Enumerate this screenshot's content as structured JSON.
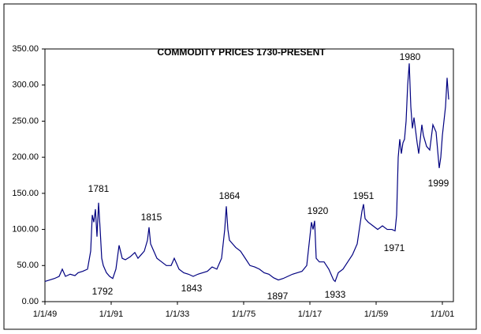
{
  "chart_data": {
    "type": "line",
    "title": "COMMODITY PRICES 1730-PRESENT",
    "x": [
      1749,
      1752,
      1755,
      1758,
      1760,
      1762,
      1765,
      1768,
      1770,
      1773,
      1776,
      1778,
      1779,
      1780,
      1781,
      1782,
      1783,
      1784,
      1785,
      1786,
      1788,
      1790,
      1792,
      1794,
      1796,
      1798,
      1800,
      1803,
      1806,
      1808,
      1810,
      1812,
      1814,
      1815,
      1816,
      1818,
      1820,
      1823,
      1826,
      1829,
      1831,
      1834,
      1837,
      1840,
      1843,
      1846,
      1849,
      1852,
      1855,
      1858,
      1861,
      1863,
      1864,
      1865,
      1866,
      1868,
      1870,
      1873,
      1876,
      1879,
      1882,
      1885,
      1888,
      1891,
      1894,
      1897,
      1900,
      1903,
      1906,
      1909,
      1912,
      1915,
      1917,
      1918,
      1919,
      1920,
      1921,
      1923,
      1926,
      1929,
      1932,
      1933,
      1935,
      1938,
      1941,
      1944,
      1947,
      1950,
      1951,
      1952,
      1954,
      1957,
      1960,
      1963,
      1966,
      1969,
      1971,
      1972,
      1973,
      1974,
      1975,
      1976,
      1977,
      1978,
      1979,
      1980,
      1981,
      1982,
      1983,
      1985,
      1986,
      1988,
      1989,
      1991,
      1993,
      1995,
      1997,
      1999,
      2000,
      2001,
      2003,
      2004,
      2005
    ],
    "series": [
      {
        "color": "#000080",
        "values": [
          28,
          30,
          32,
          35,
          45,
          35,
          38,
          36,
          40,
          42,
          45,
          70,
          120,
          110,
          128,
          90,
          137,
          100,
          60,
          50,
          40,
          35,
          32,
          45,
          78,
          60,
          58,
          62,
          68,
          60,
          65,
          70,
          85,
          103,
          80,
          70,
          60,
          55,
          50,
          50,
          60,
          45,
          40,
          38,
          35,
          38,
          40,
          42,
          48,
          45,
          60,
          100,
          132,
          100,
          85,
          80,
          75,
          70,
          60,
          50,
          48,
          45,
          40,
          38,
          33,
          30,
          32,
          35,
          38,
          40,
          42,
          50,
          90,
          110,
          100,
          112,
          60,
          55,
          55,
          45,
          30,
          28,
          40,
          45,
          55,
          65,
          80,
          125,
          135,
          115,
          110,
          105,
          100,
          105,
          100,
          100,
          98,
          120,
          200,
          225,
          205,
          220,
          225,
          250,
          300,
          330,
          270,
          240,
          255,
          220,
          205,
          245,
          230,
          215,
          210,
          245,
          235,
          185,
          200,
          230,
          270,
          310,
          280
        ]
      }
    ],
    "xlim": [
      1749,
      2008
    ],
    "xticks": [
      {
        "value": 1749,
        "label": "1/1/49"
      },
      {
        "value": 1791,
        "label": "1/1/91"
      },
      {
        "value": 1833,
        "label": "1/1/33"
      },
      {
        "value": 1875,
        "label": "1/1/75"
      },
      {
        "value": 1917,
        "label": "1/1/17"
      },
      {
        "value": 1959,
        "label": "1/1/59"
      },
      {
        "value": 2001,
        "label": "1/1/01"
      }
    ],
    "ylim": [
      0,
      350
    ],
    "yticks": [
      {
        "value": 0,
        "label": "0.00"
      },
      {
        "value": 50,
        "label": "50.00"
      },
      {
        "value": 100,
        "label": "100.00"
      },
      {
        "value": 150,
        "label": "150.00"
      },
      {
        "value": 200,
        "label": "200.00"
      },
      {
        "value": 250,
        "label": "250.00"
      },
      {
        "value": 300,
        "label": "300.00"
      },
      {
        "value": 350,
        "label": "350.00"
      }
    ],
    "annotations": [
      "1781",
      "1792",
      "1815",
      "1843",
      "1864",
      "1897",
      "1920",
      "1933",
      "1951",
      "1971",
      "1980",
      "1999"
    ]
  }
}
